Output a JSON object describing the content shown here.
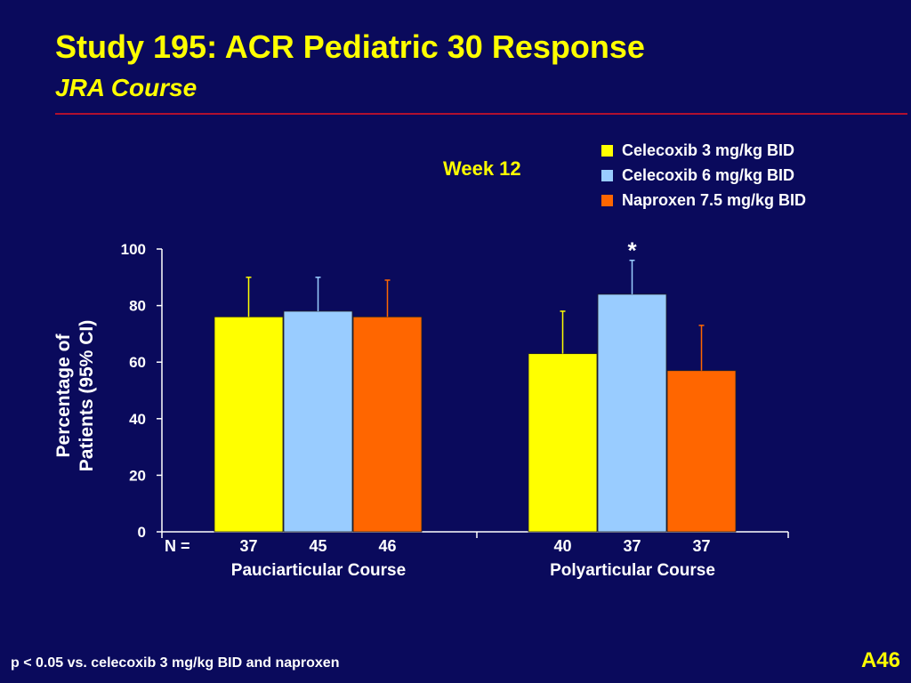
{
  "slide": {
    "title": "Study 195:  ACR Pediatric 30 Response",
    "subtitle": "JRA Course",
    "week_label": "Week 12",
    "footnote": "p < 0.05 vs. celecoxib 3 mg/kg BID and naproxen",
    "slide_id": "A46"
  },
  "colors": {
    "background": "#0a0a5c",
    "title": "#ffff00",
    "rule": "#b01030"
  },
  "chart_data": {
    "type": "bar",
    "ylabel_line1": "Percentage of",
    "ylabel_line2": "Patients (95% CI)",
    "ylim": [
      0,
      100
    ],
    "yticks": [
      0,
      20,
      40,
      60,
      80,
      100
    ],
    "n_label": "N =",
    "significance_marker": "*",
    "series": [
      {
        "name": "Celecoxib 3 mg/kg BID",
        "color": "#ffff00"
      },
      {
        "name": "Celecoxib 6 mg/kg BID",
        "color": "#99ccff"
      },
      {
        "name": "Naproxen 7.5 mg/kg BID",
        "color": "#ff6600"
      }
    ],
    "groups": [
      {
        "label": "Pauciarticular Course",
        "values": [
          76,
          78,
          76
        ],
        "ci_upper": [
          90,
          90,
          89
        ],
        "n": [
          "37",
          "45",
          "46"
        ],
        "significant": [
          false,
          false,
          false
        ]
      },
      {
        "label": "Polyarticular Course",
        "values": [
          63,
          84,
          57
        ],
        "ci_upper": [
          78,
          96,
          73
        ],
        "n": [
          "40",
          "37",
          "37"
        ],
        "significant": [
          false,
          true,
          false
        ]
      }
    ]
  }
}
